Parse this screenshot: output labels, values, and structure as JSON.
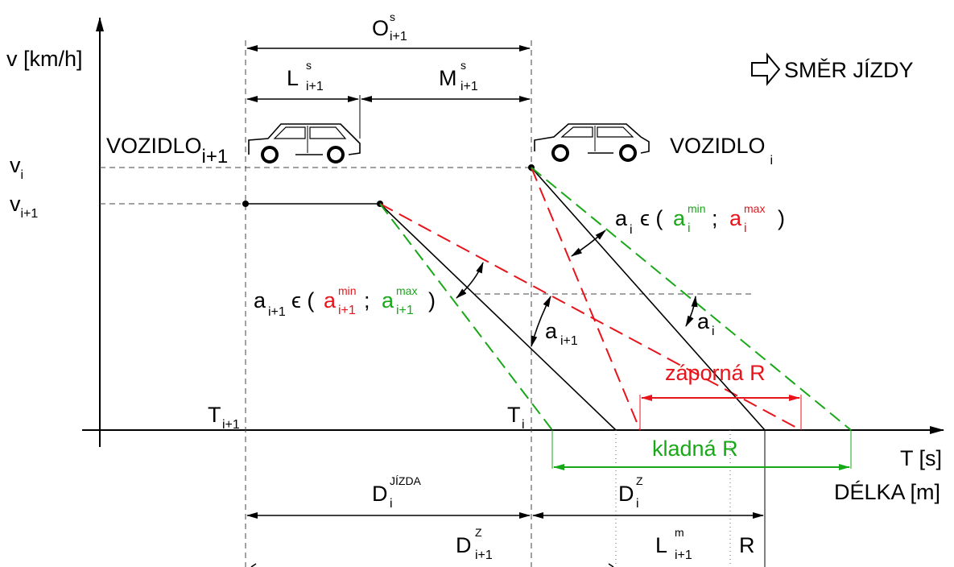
{
  "axes": {
    "y_label": "v [km/h]",
    "x_label_time": "T [s]",
    "x_label_length": "DÉLKA [m]"
  },
  "direction_label": "SMĚR JÍZDY",
  "vehicles": {
    "follower": {
      "name": "VOZIDLO",
      "index": "i+1"
    },
    "leader": {
      "name": "VOZIDLO",
      "index": "i"
    }
  },
  "speeds": {
    "v_i": {
      "base": "v",
      "sub": "i"
    },
    "v_i1": {
      "base": "v",
      "sub": "i+1"
    }
  },
  "times": {
    "T_i1": {
      "base": "T",
      "sub": "i+1"
    },
    "T_i": {
      "base": "T",
      "sub": "i"
    }
  },
  "dimensions": {
    "O": {
      "base": "O",
      "sup": "s",
      "sub": "i+1"
    },
    "L": {
      "base": "L",
      "sup": "s",
      "sub": "i+1"
    },
    "M": {
      "base": "M",
      "sup": "s",
      "sub": "i+1"
    },
    "D_jizda": {
      "base": "D",
      "sup": "JÍZDA",
      "sub": "i"
    },
    "D_z_i": {
      "base": "D",
      "sup": "Z",
      "sub": "i"
    },
    "D_z_i1": {
      "base": "D",
      "sup": "Z",
      "sub": "i+1"
    },
    "L_m": {
      "base": "L",
      "sup": "m",
      "sub": "i+1"
    },
    "R": "R"
  },
  "decel": {
    "a_i1_range": {
      "a": "a",
      "a_sub": "i+1",
      "in": "ϵ (",
      "min": "a",
      "min_sup": "min",
      "min_sub": "i+1",
      "sep": ";",
      "max": "a",
      "max_sup": "max",
      "max_sub": "i+1",
      "close": ")"
    },
    "a_i_range": {
      "a": "a",
      "a_sub": "i",
      "in": "ϵ (",
      "min": "a",
      "min_sup": "min",
      "min_sub": "i",
      "sep": ";",
      "max": "a",
      "max_sup": "max",
      "max_sub": "i",
      "close": ")"
    },
    "a_i1_angle": {
      "base": "a",
      "sub": "i+1"
    },
    "a_i_angle": {
      "base": "a",
      "sub": "i"
    }
  },
  "reserves": {
    "negative": "záporná R",
    "positive": "kladná R"
  },
  "colors": {
    "red": "#e8141b",
    "green": "#18a818",
    "black": "#000000"
  }
}
